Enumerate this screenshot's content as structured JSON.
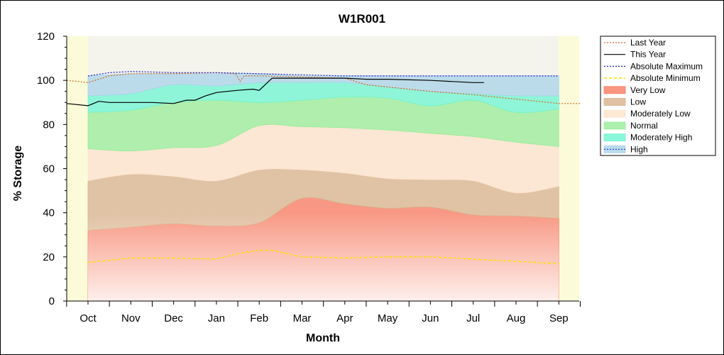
{
  "chart_data": {
    "type": "area",
    "title": "W1R001",
    "xlabel": "Month",
    "ylabel": "% Storage",
    "ylim": [
      0,
      120
    ],
    "yticks": [
      0,
      20,
      40,
      60,
      80,
      100,
      120
    ],
    "categories": [
      "Oct",
      "Nov",
      "Dec",
      "Jan",
      "Feb",
      "Mar",
      "Apr",
      "May",
      "Jun",
      "Jul",
      "Aug",
      "Sep"
    ],
    "grid": false,
    "legend_position": "right",
    "bands": [
      {
        "name": "Very Low",
        "color": "#f97a62",
        "lower": [
          0,
          0,
          0,
          0,
          0,
          0,
          0,
          0,
          0,
          0,
          0,
          0
        ],
        "upper": [
          32,
          33.5,
          35,
          34,
          35.5,
          46.5,
          44,
          42,
          42.5,
          39,
          38.5,
          37.5
        ]
      },
      {
        "name": "Low",
        "color": "#d9b28c",
        "lower": [
          32,
          33.5,
          35,
          34,
          35.5,
          46.5,
          44,
          42,
          42.5,
          39,
          38.5,
          37.5
        ],
        "upper": [
          54.5,
          57.5,
          56.5,
          54.5,
          59.5,
          59.5,
          58,
          55.5,
          55,
          54.5,
          49,
          52
        ]
      },
      {
        "name": "Moderately Low",
        "color": "#fde3cc",
        "lower": [
          54.5,
          57.5,
          56.5,
          54.5,
          59.5,
          59.5,
          58,
          55.5,
          55,
          54.5,
          49,
          52
        ],
        "upper": [
          69,
          68,
          69.5,
          70.5,
          79.5,
          79,
          78.5,
          77.5,
          76,
          74.5,
          72,
          70
        ]
      },
      {
        "name": "Normal",
        "color": "#98ec98",
        "lower": [
          69,
          68,
          69.5,
          70.5,
          79.5,
          79,
          78.5,
          77.5,
          76,
          74.5,
          72,
          70
        ],
        "upper": [
          85.5,
          86.5,
          90,
          91,
          90,
          91,
          92.5,
          92,
          88.5,
          91,
          85.5,
          87
        ]
      },
      {
        "name": "Moderately High",
        "color": "#6ef5d2",
        "lower": [
          85.5,
          86.5,
          90,
          91,
          90,
          91,
          92.5,
          92,
          88.5,
          91,
          85.5,
          87
        ],
        "upper": [
          93,
          94,
          98,
          97.5,
          99,
          99,
          99,
          97,
          95,
          94,
          93,
          93
        ]
      },
      {
        "name": "High",
        "color": "#a9d3ea",
        "lower": [
          93,
          94,
          98,
          97.5,
          99,
          99,
          99,
          97,
          95,
          94,
          93,
          93
        ],
        "upper": [
          102,
          103,
          103,
          103,
          103,
          102,
          102,
          102,
          102,
          102,
          102,
          102
        ]
      }
    ],
    "series": [
      {
        "name": "Last Year",
        "color": "#d2691e",
        "style": "dotted",
        "x": [
          -0.5,
          0,
          0.5,
          1,
          2,
          3,
          3.45,
          3.55,
          3.65,
          4,
          5,
          6,
          6.5,
          7,
          8,
          9,
          10,
          11,
          11.5
        ],
        "y": [
          100,
          99,
          102,
          103,
          103,
          103.5,
          103,
          99.5,
          102,
          102,
          101.5,
          101,
          98,
          97,
          95,
          93.5,
          91.5,
          89.5,
          89.5
        ]
      },
      {
        "name": "This Year",
        "color": "#000000",
        "style": "solid",
        "x": [
          -0.5,
          0,
          0.25,
          0.5,
          1,
          1.5,
          2,
          2.3,
          2.5,
          2.75,
          3,
          3.5,
          3.85,
          4,
          4.3,
          5,
          5.5,
          6,
          6.5,
          7,
          8,
          9,
          9.25
        ],
        "y": [
          89.5,
          88.5,
          90.5,
          90,
          90,
          90,
          89.5,
          91,
          91,
          93,
          94.5,
          95.5,
          96,
          95.5,
          101,
          101,
          101,
          101,
          100.5,
          100.5,
          100,
          99,
          99
        ]
      },
      {
        "name": "Absolute Maximum",
        "color": "#1c1cc8",
        "style": "dotted",
        "x": [
          0,
          0.5,
          1,
          1.5,
          2,
          3,
          4,
          5,
          6,
          7,
          8,
          9,
          10,
          11
        ],
        "y": [
          102,
          103.5,
          104,
          103.8,
          103.5,
          103.5,
          103,
          102.5,
          102,
          102,
          102,
          102,
          102,
          102
        ]
      },
      {
        "name": "Absolute Minimum",
        "color": "#ffe000",
        "style": "dashed",
        "x": [
          0,
          0.5,
          1,
          2,
          3,
          3.5,
          4,
          4.3,
          5,
          6,
          7,
          8,
          9,
          10,
          11
        ],
        "y": [
          17.5,
          18.5,
          19.5,
          19.5,
          19,
          21.5,
          23,
          23,
          20,
          19.5,
          20,
          20,
          19,
          18,
          17
        ]
      }
    ],
    "legend": [
      "Last Year",
      "This Year",
      "Absolute Maximum",
      "Absolute Minimum",
      "Very Low",
      "Low",
      "Moderately Low",
      "Normal",
      "Moderately High",
      "High"
    ],
    "plot_background": "#fdfde0",
    "plot_background_inner": "#f7f7ea"
  }
}
